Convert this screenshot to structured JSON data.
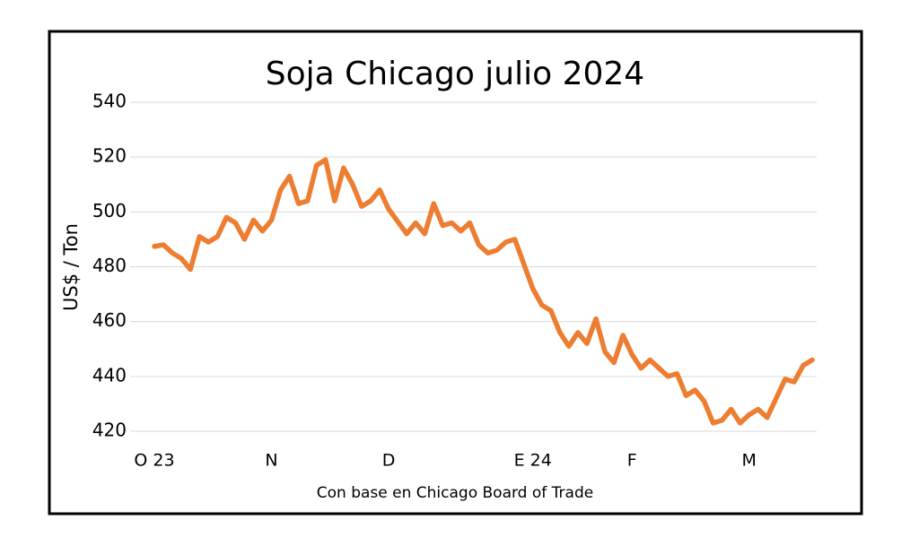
{
  "chart_data": {
    "type": "line",
    "title": "Soja Chicago julio 2024",
    "x_label": "Con base en Chicago Board of Trade",
    "y_label": "US$ / Ton",
    "categories": [
      "O 23",
      null,
      null,
      null,
      null,
      null,
      null,
      null,
      null,
      null,
      null,
      null,
      null,
      "N",
      null,
      null,
      null,
      null,
      null,
      null,
      null,
      null,
      null,
      null,
      null,
      null,
      "D",
      null,
      null,
      null,
      null,
      null,
      null,
      null,
      null,
      null,
      null,
      null,
      null,
      null,
      null,
      null,
      "E 24",
      null,
      null,
      null,
      null,
      null,
      null,
      null,
      null,
      null,
      null,
      "F",
      null,
      null,
      null,
      null,
      null,
      null,
      null,
      null,
      null,
      null,
      null,
      null,
      "M",
      null,
      null,
      null,
      null,
      null,
      null,
      null
    ],
    "series": [
      {
        "name": "Soja",
        "color": "#ed7d31",
        "values": [
          487.4,
          488,
          485,
          483,
          479,
          491,
          489,
          491,
          498,
          496,
          490,
          497,
          493,
          497,
          508,
          513,
          503,
          504,
          517,
          519,
          504,
          516,
          510,
          502,
          504,
          508,
          501,
          496.5,
          492,
          496,
          492,
          503,
          495,
          496,
          493,
          496,
          488,
          485,
          486,
          489,
          490,
          481,
          472,
          466,
          464,
          456,
          451,
          456,
          452,
          461,
          449,
          445,
          455,
          448,
          443,
          446,
          443,
          440,
          441,
          433,
          435,
          431,
          423,
          424,
          428,
          423,
          426,
          428,
          425,
          432,
          439,
          438,
          444,
          446
        ]
      }
    ],
    "ylim": [
      420,
      540
    ],
    "yticks": [
      420,
      440,
      460,
      480,
      500,
      520,
      540
    ],
    "grid": true
  }
}
